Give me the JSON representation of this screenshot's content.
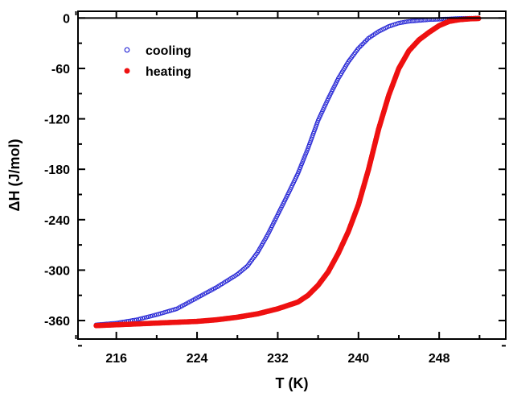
{
  "chart_data": {
    "type": "scatter",
    "xlabel": "T  (K)",
    "ylabel": "ΔH  (J/mol)",
    "xlim": [
      212.2,
      254.6
    ],
    "ylim": [
      -382,
      8
    ],
    "xticks": [
      216,
      224,
      232,
      240,
      248
    ],
    "yticks": [
      0,
      -60,
      -120,
      -180,
      -240,
      -300,
      -360
    ],
    "grid": false,
    "legend_position": "top-left",
    "reference_line": 0,
    "series": [
      {
        "name": "cooling",
        "color": "#2a2ad6",
        "marker": "open-circle",
        "points": [
          [
            214.0,
            -365
          ],
          [
            216.0,
            -363
          ],
          [
            218.0,
            -359
          ],
          [
            220.0,
            -353
          ],
          [
            222.0,
            -346
          ],
          [
            224.0,
            -333
          ],
          [
            226.0,
            -320
          ],
          [
            228.0,
            -305
          ],
          [
            229.0,
            -295
          ],
          [
            230.0,
            -279
          ],
          [
            231.0,
            -258
          ],
          [
            232.0,
            -234
          ],
          [
            233.0,
            -210
          ],
          [
            234.0,
            -185
          ],
          [
            235.0,
            -155
          ],
          [
            236.0,
            -122
          ],
          [
            237.0,
            -96
          ],
          [
            238.0,
            -72
          ],
          [
            239.0,
            -52
          ],
          [
            240.0,
            -36
          ],
          [
            241.0,
            -24
          ],
          [
            242.0,
            -16
          ],
          [
            243.0,
            -10
          ],
          [
            244.0,
            -6
          ],
          [
            245.0,
            -4
          ],
          [
            246.0,
            -3
          ],
          [
            247.0,
            -2
          ],
          [
            248.0,
            -1.5
          ],
          [
            250.0,
            -0.5
          ],
          [
            252.0,
            0
          ]
        ]
      },
      {
        "name": "heating",
        "color": "#ee1111",
        "marker": "filled-circle",
        "points": [
          [
            214.0,
            -366
          ],
          [
            216.0,
            -365
          ],
          [
            218.0,
            -364
          ],
          [
            220.0,
            -363
          ],
          [
            222.0,
            -362
          ],
          [
            224.0,
            -361
          ],
          [
            226.0,
            -359
          ],
          [
            228.0,
            -356
          ],
          [
            230.0,
            -352
          ],
          [
            232.0,
            -346
          ],
          [
            234.0,
            -338
          ],
          [
            235.0,
            -330
          ],
          [
            236.0,
            -318
          ],
          [
            237.0,
            -302
          ],
          [
            238.0,
            -280
          ],
          [
            239.0,
            -254
          ],
          [
            240.0,
            -222
          ],
          [
            241.0,
            -180
          ],
          [
            242.0,
            -132
          ],
          [
            243.0,
            -92
          ],
          [
            244.0,
            -60
          ],
          [
            245.0,
            -39
          ],
          [
            246.0,
            -26
          ],
          [
            247.0,
            -17
          ],
          [
            248.0,
            -9
          ],
          [
            249.0,
            -4
          ],
          [
            250.0,
            -2
          ],
          [
            251.0,
            -1
          ],
          [
            252.0,
            -0.5
          ]
        ]
      }
    ]
  }
}
